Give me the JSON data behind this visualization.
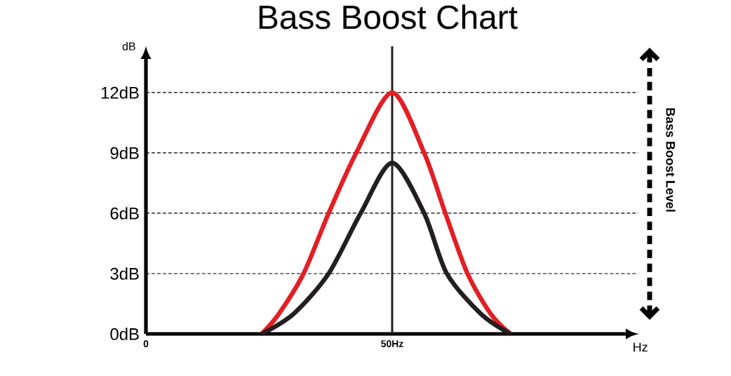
{
  "chart_data": {
    "type": "line",
    "title": "Bass Boost Chart",
    "xlabel": "Hz",
    "ylabel": "dB",
    "xlim": [
      0,
      100
    ],
    "ylim": [
      0,
      14.3
    ],
    "xticks": [
      0,
      {
        "value": 50,
        "label": "50Hz"
      }
    ],
    "yticks": [
      {
        "value": 0,
        "label": "0dB"
      },
      {
        "value": 3,
        "label": "3dB"
      },
      {
        "value": 6,
        "label": "6dB"
      },
      {
        "value": 9,
        "label": "9dB"
      },
      {
        "value": 12,
        "label": "12dB"
      }
    ],
    "grid": "y",
    "line_style": "solid",
    "marker": "none",
    "series": [
      {
        "color": "#e31e24",
        "x": [
          23.5,
          27,
          32,
          37.1,
          42.7,
          50,
          56.5,
          60.8,
          65.3,
          70,
          74
        ],
        "values": [
          0,
          1,
          3,
          6,
          9,
          12,
          9,
          6,
          3,
          1,
          0
        ]
      },
      {
        "color": "#231f20",
        "x": [
          23.5,
          30,
          37.1,
          43.6,
          50,
          56.5,
          61.1,
          68,
          74
        ],
        "values": [
          0,
          1,
          3,
          6,
          8.5,
          6,
          3,
          1,
          0
        ]
      }
    ],
    "ref_lines": [
      {
        "axis": "x",
        "value": 50,
        "color": "#231f20"
      }
    ],
    "annotations": [
      "Bass Boost Level"
    ]
  }
}
